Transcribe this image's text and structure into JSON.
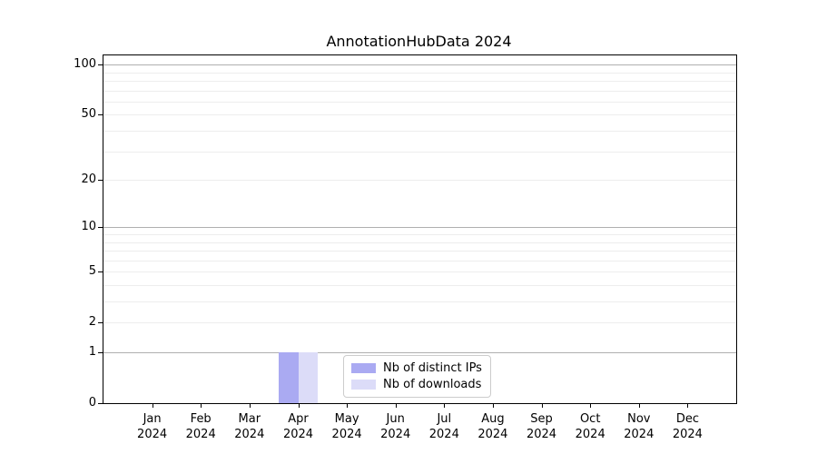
{
  "chart_data": {
    "type": "bar",
    "title": "AnnotationHubData 2024",
    "categories": [
      "Jan",
      "Feb",
      "Mar",
      "Apr",
      "May",
      "Jun",
      "Jul",
      "Aug",
      "Sep",
      "Oct",
      "Nov",
      "Dec"
    ],
    "category_year": "2024",
    "series": [
      {
        "name": "Nb of distinct IPs",
        "color": "#aaaaf2",
        "values": [
          0,
          0,
          0,
          1,
          0,
          0,
          0,
          0,
          0,
          0,
          0,
          0
        ]
      },
      {
        "name": "Nb of downloads",
        "color": "#dcdcf8",
        "values": [
          0,
          0,
          0,
          1,
          0,
          0,
          0,
          0,
          0,
          0,
          0,
          0
        ]
      }
    ],
    "y_ticks": [
      0,
      1,
      2,
      5,
      10,
      20,
      50,
      100
    ],
    "y_scale": "log1p",
    "ylim": [
      0,
      113
    ],
    "grid": {
      "major_values": [
        1,
        10,
        100
      ],
      "minor_values": [
        2,
        3,
        4,
        5,
        6,
        7,
        8,
        9,
        20,
        30,
        40,
        50,
        60,
        70,
        80,
        90
      ]
    },
    "legend_position": "lower center",
    "xlabel": "",
    "ylabel": ""
  }
}
